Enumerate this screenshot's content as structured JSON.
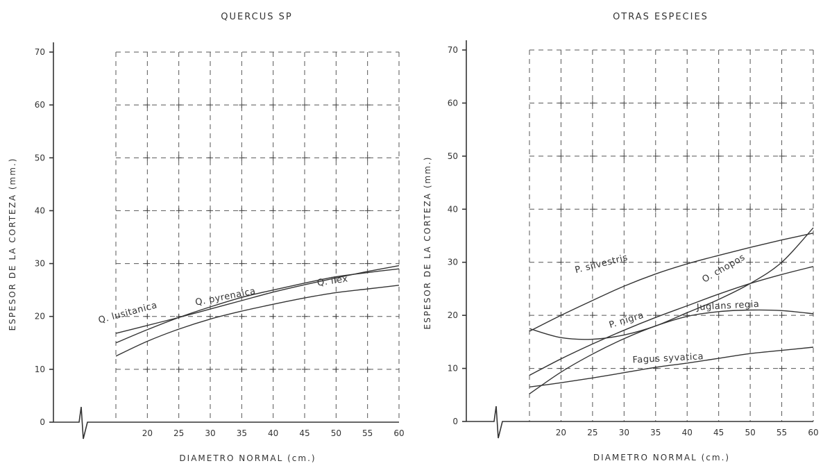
{
  "chart_data": [
    {
      "type": "line",
      "title": "QUERCUS SP",
      "xlabel": "DIAMETRO NORMAL (cm.)",
      "ylabel": "ESPESOR DE LA CORTEZA (mm.)",
      "xlim": [
        15,
        60
      ],
      "ylim": [
        0,
        70
      ],
      "x_ticks": [
        "20",
        "25",
        "30",
        "35",
        "40",
        "45",
        "50",
        "55",
        "60"
      ],
      "y_ticks": [
        "0",
        "10",
        "20",
        "30",
        "40",
        "50",
        "60",
        "70"
      ],
      "grid": true,
      "series": [
        {
          "name": "Q. lusitanica",
          "x": [
            15,
            20,
            25,
            30,
            35,
            40,
            45,
            50,
            55,
            60
          ],
          "y": [
            16.8,
            18.3,
            19.8,
            21.4,
            23.0,
            24.6,
            26.0,
            27.3,
            28.5,
            29.6
          ]
        },
        {
          "name": "Q. pyrenaica",
          "x": [
            15,
            20,
            25,
            30,
            35,
            40,
            45,
            50,
            55,
            60
          ],
          "y": [
            15.0,
            17.5,
            19.8,
            21.8,
            23.6,
            25.0,
            26.3,
            27.5,
            28.3,
            29.0
          ]
        },
        {
          "name": "Q. ilex",
          "x": [
            15,
            20,
            25,
            30,
            35,
            40,
            45,
            50,
            55,
            60
          ],
          "y": [
            12.5,
            15.3,
            17.6,
            19.5,
            21.0,
            22.3,
            23.5,
            24.5,
            25.2,
            25.9
          ]
        }
      ],
      "labels": [
        {
          "text": "Q. lusitanica",
          "x": 17,
          "y": 20.2,
          "rotate": -15
        },
        {
          "text": "Q. pyrenaica",
          "x": 32.5,
          "y": 23.2,
          "rotate": -11
        },
        {
          "text": "Q. ilex",
          "x": 49.5,
          "y": 26.2,
          "rotate": -8
        }
      ]
    },
    {
      "type": "line",
      "title": "OTRAS ESPECIES",
      "xlabel": "DIAMETRO NORMAL (cm.)",
      "ylabel": "ESPESOR DE LA CORTEZA (mm.)",
      "xlim": [
        15,
        60
      ],
      "ylim": [
        0,
        70
      ],
      "x_ticks": [
        "20",
        "25",
        "30",
        "35",
        "40",
        "45",
        "50",
        "55",
        "60"
      ],
      "y_ticks": [
        "0",
        "10",
        "20",
        "30",
        "40",
        "50",
        "60",
        "70"
      ],
      "grid": true,
      "series": [
        {
          "name": "P. silvestris",
          "x": [
            15,
            20,
            25,
            30,
            35,
            40,
            45,
            50,
            55,
            60
          ],
          "y": [
            17.0,
            20.0,
            22.8,
            25.5,
            27.8,
            29.7,
            31.3,
            32.8,
            34.2,
            35.5
          ]
        },
        {
          "name": "O. chopos",
          "x": [
            15,
            20,
            25,
            30,
            35,
            40,
            45,
            50,
            55,
            60
          ],
          "y": [
            17.5,
            15.8,
            15.5,
            16.3,
            18.0,
            20.5,
            23.0,
            26.0,
            30.0,
            36.5
          ]
        },
        {
          "name": "P. nigra",
          "x": [
            15,
            20,
            25,
            30,
            35,
            40,
            45,
            50,
            55,
            60
          ],
          "y": [
            8.7,
            11.8,
            14.6,
            17.2,
            19.6,
            21.8,
            24.0,
            26.0,
            27.7,
            29.2
          ]
        },
        {
          "name": "Juglans regia",
          "x": [
            15,
            20,
            25,
            30,
            35,
            40,
            45,
            50,
            55,
            60
          ],
          "y": [
            5.2,
            9.3,
            12.7,
            15.6,
            18.0,
            19.8,
            20.7,
            21.0,
            20.9,
            20.3
          ]
        },
        {
          "name": "Fagus syvatica",
          "x": [
            15,
            20,
            25,
            30,
            35,
            40,
            45,
            50,
            55,
            60
          ],
          "y": [
            6.5,
            7.3,
            8.2,
            9.2,
            10.2,
            11.0,
            11.9,
            12.8,
            13.4,
            14.0
          ]
        }
      ],
      "labels": [
        {
          "text": "P. silvestris",
          "x": 26.5,
          "y": 29.2,
          "rotate": -14
        },
        {
          "text": "O. chopos",
          "x": 46,
          "y": 28.4,
          "rotate": -30
        },
        {
          "text": "P. nigra",
          "x": 30.5,
          "y": 18.6,
          "rotate": -17
        },
        {
          "text": "Juglans regia",
          "x": 46.5,
          "y": 21.3,
          "rotate": -3
        },
        {
          "text": "Fagus syvatica",
          "x": 37,
          "y": 11.4,
          "rotate": -3
        }
      ]
    }
  ]
}
